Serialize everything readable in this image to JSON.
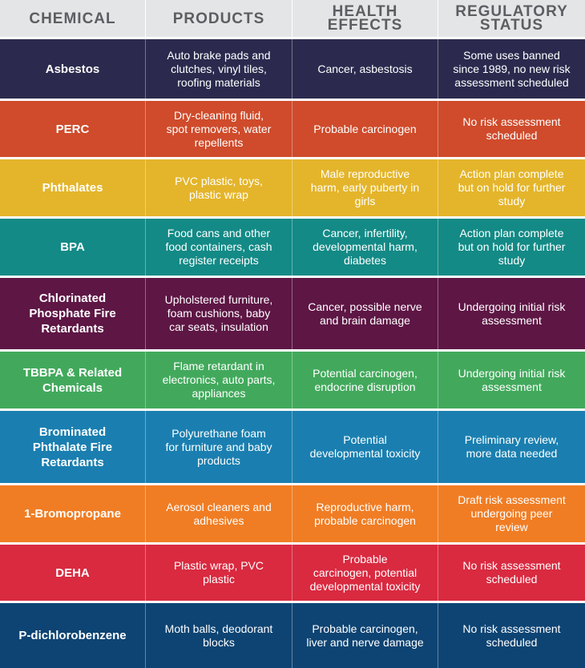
{
  "header": {
    "chemical": "CHEMICAL",
    "products": "PRODUCTS",
    "health": "HEALTH\nEFFECTS",
    "regulatory": "REGULATORY\nSTATUS"
  },
  "rows": [
    {
      "chemical": "Asbestos",
      "products": "Auto brake pads and\nclutches, vinyl tiles,\nroofing materials",
      "health": "Cancer, asbestosis",
      "regulatory": "Some uses banned\nsince 1989, no new risk\nassessment scheduled",
      "color": "#2b2a4e"
    },
    {
      "chemical": "PERC",
      "products": "Dry-cleaning fluid,\nspot removers, water\nrepellents",
      "health": "Probable carcinogen",
      "regulatory": "No risk assessment\nscheduled",
      "color": "#cf4b2b"
    },
    {
      "chemical": "Phthalates",
      "products": "PVC plastic, toys,\nplastic wrap",
      "health": "Male reproductive\nharm, early puberty in\ngirls",
      "regulatory": "Action plan complete\nbut on hold for further\nstudy",
      "color": "#e4b52b"
    },
    {
      "chemical": "BPA",
      "products": "Food cans and other\nfood containers, cash\nregister receipts",
      "health": "Cancer, infertility,\ndevelopmental harm,\ndiabetes",
      "regulatory": "Action plan complete\nbut on hold for further\nstudy",
      "color": "#138a86"
    },
    {
      "chemical": "Chlorinated\nPhosphate Fire\nRetardants",
      "products": "Upholstered furniture,\nfoam cushions, baby\ncar seats, insulation",
      "health": "Cancer, possible nerve\nand brain damage",
      "regulatory": "Undergoing initial risk\nassessment",
      "color": "#5e1645"
    },
    {
      "chemical": "TBBPA & Related\nChemicals",
      "products": "Flame retardant in\nelectronics, auto parts,\nappliances",
      "health": "Potential carcinogen,\nendocrine disruption",
      "regulatory": "Undergoing initial risk\nassessment",
      "color": "#42a95c"
    },
    {
      "chemical": "Brominated\nPhthalate Fire\nRetardants",
      "products": "Polyurethane foam\nfor furniture and baby\nproducts",
      "health": "Potential\ndevelopmental toxicity",
      "regulatory": "Preliminary review,\nmore data needed",
      "color": "#1a7fb0"
    },
    {
      "chemical": "1-Bromopropane",
      "products": "Aerosol cleaners and\nadhesives",
      "health": "Reproductive harm,\nprobable carcinogen",
      "regulatory": "Draft risk assessment\nundergoing peer\nreview",
      "color": "#f07d24"
    },
    {
      "chemical": "DEHA",
      "products": "Plastic wrap, PVC\nplastic",
      "health": "Probable\ncarcinogen, potential\ndevelopmental toxicity",
      "regulatory": "No risk assessment\nscheduled",
      "color": "#d92a40"
    },
    {
      "chemical": "P-dichlorobenzene",
      "products": "Moth balls, deodorant\nblocks",
      "health": "Probable carcinogen,\nliver and nerve damage",
      "regulatory": "No risk assessment\nscheduled",
      "color": "#0e4473"
    }
  ]
}
